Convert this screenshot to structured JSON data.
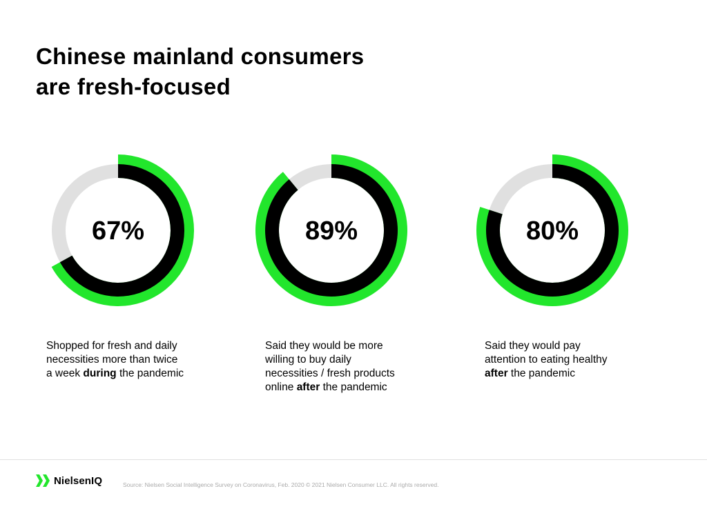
{
  "title": {
    "line1": "Chinese mainland consumers",
    "line2": "are fresh-focused"
  },
  "colors": {
    "green": "#22e62c",
    "black": "#000000",
    "track": "#e0e0e0"
  },
  "chart_data": [
    {
      "type": "pie",
      "label": "67%",
      "values": [
        67,
        33
      ],
      "description": {
        "before": "Shopped for fresh and daily necessities more than twice a week ",
        "emphasis": "during",
        "after": " the pandemic"
      }
    },
    {
      "type": "pie",
      "label": "89%",
      "values": [
        89,
        11
      ],
      "description": {
        "before": "Said they would be more willing to buy daily necessities / fresh products online ",
        "emphasis": "after",
        "after": " the pandemic"
      }
    },
    {
      "type": "pie",
      "label": "80%",
      "values": [
        80,
        20
      ],
      "description": {
        "before": "Said they would pay attention to eating healthy ",
        "emphasis": "after",
        "after": " the pandemic"
      }
    }
  ],
  "footer": {
    "logo_text": "NielsenIQ",
    "logo_icon": "nielseniq-logo-icon",
    "source": "Source: Nielsen Social Intelligence Survey on Coronavirus, Feb. 2020 © 2021 Nielsen Consumer LLC. All rights reserved."
  }
}
